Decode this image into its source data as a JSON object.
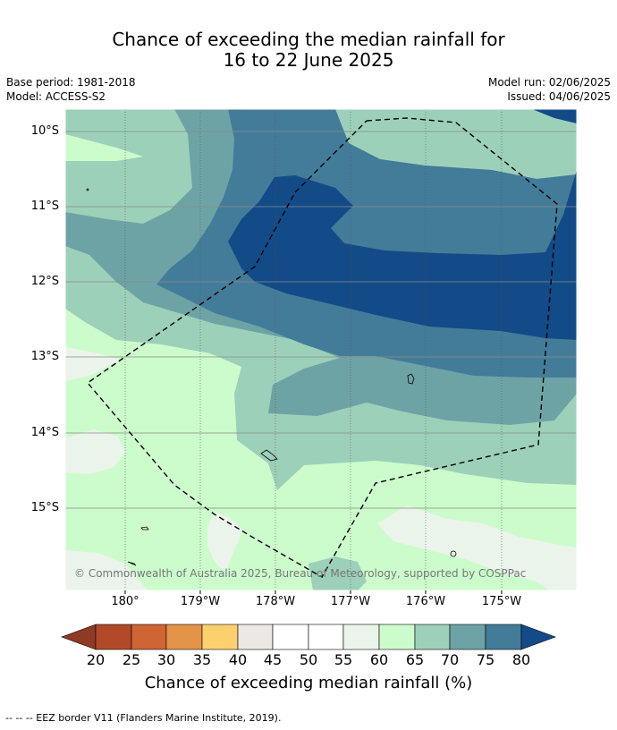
{
  "title": {
    "line1": "Chance of exceeding the median rainfall for",
    "line2": "16 to 22 June 2025"
  },
  "meta": {
    "base_period": "Base period: 1981-2018",
    "model": "Model: ACCESS-S2",
    "model_run": "Model run: 02/06/2025",
    "issued": "Issued: 04/06/2025"
  },
  "map": {
    "lat_labels": [
      "10°S",
      "11°S",
      "12°S",
      "13°S",
      "14°S",
      "15°S"
    ],
    "lon_labels": [
      "180°",
      "179°W",
      "178°W",
      "177°W",
      "176°W",
      "175°W"
    ],
    "copyright": "© Commonwealth of Australia 2025, Bureau of Meteorology, supported by COSPPac",
    "eez_border_style": "dashed black"
  },
  "colorbar": {
    "ticks": [
      "20",
      "25",
      "30",
      "35",
      "40",
      "45",
      "50",
      "55",
      "60",
      "65",
      "70",
      "75",
      "80"
    ],
    "colors": {
      "below_20": "#8e3a25",
      "20_25": "#b24a2a",
      "25_30": "#cf6535",
      "30_35": "#e39449",
      "35_40": "#fdd06e",
      "40_45": "#ece8e3",
      "45_50": "#ffffff",
      "50_55": "#ffffff",
      "55_60": "#ebf4ea",
      "60_65": "#ccfccb",
      "65_70": "#9dd0b9",
      "70_75": "#6ea3a6",
      "75_80": "#437c99",
      "above_80": "#124b87"
    },
    "label": "Chance of exceeding median rainfall (%)"
  },
  "footnote": "--  --  -- EEZ border V11 (Flanders Marine Institute, 2019)."
}
